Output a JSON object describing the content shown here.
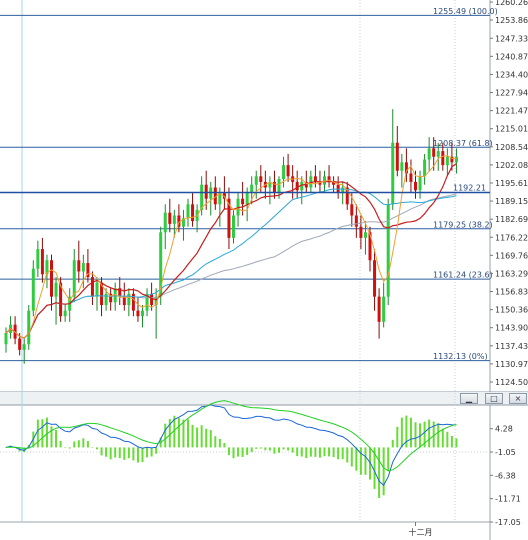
{
  "colors": {
    "up": "#2ecc40",
    "down": "#d01010",
    "fib_line": "#2f5f9f",
    "ma_fast": "#f0a030",
    "ma_mid": "#c81e1e",
    "ma_slow": "#2aa8d8",
    "ma_long": "#a0a8b8",
    "macd_line": "#1b66d6",
    "signal_line": "#22d022",
    "histogram": "#66dd33"
  },
  "subwindow_buttons": [
    {
      "label": "▁",
      "icon": "minimize-icon"
    },
    {
      "label": "□",
      "icon": "maximize-icon"
    },
    {
      "label": "×",
      "icon": "close-icon"
    }
  ],
  "chart_data": [
    {
      "type": "candlestick",
      "ylim": [
        1124.5,
        1261.0
      ],
      "ytick_labels": [
        "1260.26",
        "1253.86",
        "1247.33",
        "1240.87",
        "1234.40",
        "1227.94",
        "1221.47",
        "1215.01",
        "1208.54",
        "1202.08",
        "1195.61",
        "1189.15",
        "1182.69",
        "1176.22",
        "1169.76",
        "1163.29",
        "1156.83",
        "1150.36",
        "1143.90",
        "1137.43",
        "1130.97",
        "1124.50"
      ],
      "ytick_values": [
        1260.26,
        1253.86,
        1247.33,
        1240.87,
        1234.4,
        1227.94,
        1221.47,
        1215.01,
        1208.54,
        1202.08,
        1195.61,
        1189.15,
        1182.69,
        1176.22,
        1169.76,
        1163.29,
        1156.83,
        1150.36,
        1143.9,
        1137.43,
        1130.97,
        1124.5
      ],
      "fibonacci": [
        {
          "price": 1255.49,
          "label": "1255.49 (100.0)"
        },
        {
          "price": 1208.37,
          "label": "1208.37 (61.8)"
        },
        {
          "price": 1179.25,
          "label": "1179.25 (38.2)"
        },
        {
          "price": 1161.24,
          "label": "1161.24 (23.6)"
        },
        {
          "price": 1132.13,
          "label": "1132.13 (0%)"
        }
      ],
      "horizontal_line": {
        "price": 1192.21,
        "label": "1192.21"
      },
      "x_label": "十二月",
      "x_label_index": 90,
      "ohlc": [
        [
          1138,
          1144,
          1135,
          1142
        ],
        [
          1142,
          1148,
          1140,
          1145
        ],
        [
          1145,
          1148,
          1138,
          1140
        ],
        [
          1140,
          1142,
          1134,
          1136
        ],
        [
          1136,
          1140,
          1131,
          1138
        ],
        [
          1138,
          1152,
          1136,
          1150
        ],
        [
          1150,
          1168,
          1148,
          1165
        ],
        [
          1165,
          1175,
          1162,
          1172
        ],
        [
          1172,
          1176,
          1160,
          1163
        ],
        [
          1163,
          1170,
          1158,
          1168
        ],
        [
          1168,
          1170,
          1150,
          1155
        ],
        [
          1155,
          1162,
          1145,
          1160
        ],
        [
          1160,
          1162,
          1146,
          1148
        ],
        [
          1148,
          1152,
          1146,
          1150
        ],
        [
          1150,
          1158,
          1146,
          1155
        ],
        [
          1155,
          1172,
          1153,
          1168
        ],
        [
          1168,
          1175,
          1160,
          1164
        ],
        [
          1164,
          1170,
          1158,
          1167
        ],
        [
          1167,
          1172,
          1160,
          1162
        ],
        [
          1162,
          1164,
          1152,
          1155
        ],
        [
          1155,
          1162,
          1150,
          1160
        ],
        [
          1160,
          1162,
          1148,
          1152
        ],
        [
          1152,
          1158,
          1150,
          1156
        ],
        [
          1156,
          1158,
          1150,
          1153
        ],
        [
          1153,
          1160,
          1150,
          1158
        ],
        [
          1158,
          1162,
          1152,
          1155
        ],
        [
          1155,
          1160,
          1150,
          1152
        ],
        [
          1152,
          1158,
          1148,
          1156
        ],
        [
          1156,
          1158,
          1148,
          1150
        ],
        [
          1150,
          1155,
          1146,
          1148
        ],
        [
          1148,
          1152,
          1144,
          1150
        ],
        [
          1150,
          1158,
          1148,
          1156
        ],
        [
          1156,
          1160,
          1150,
          1152
        ],
        [
          1152,
          1158,
          1140,
          1155
        ],
        [
          1155,
          1180,
          1152,
          1178
        ],
        [
          1178,
          1188,
          1172,
          1185
        ],
        [
          1185,
          1190,
          1178,
          1181
        ],
        [
          1181,
          1186,
          1176,
          1184
        ],
        [
          1184,
          1188,
          1178,
          1180
        ],
        [
          1180,
          1186,
          1175,
          1183
        ],
        [
          1183,
          1190,
          1180,
          1188
        ],
        [
          1188,
          1192,
          1180,
          1182
        ],
        [
          1182,
          1188,
          1178,
          1186
        ],
        [
          1186,
          1198,
          1184,
          1195
        ],
        [
          1195,
          1200,
          1186,
          1190
        ],
        [
          1190,
          1196,
          1184,
          1194
        ],
        [
          1194,
          1198,
          1186,
          1188
        ],
        [
          1188,
          1194,
          1180,
          1192
        ],
        [
          1192,
          1198,
          1186,
          1190
        ],
        [
          1190,
          1194,
          1172,
          1176
        ],
        [
          1176,
          1186,
          1174,
          1184
        ],
        [
          1184,
          1192,
          1180,
          1190
        ],
        [
          1190,
          1196,
          1184,
          1188
        ],
        [
          1188,
          1194,
          1182,
          1192
        ],
        [
          1192,
          1198,
          1188,
          1195
        ],
        [
          1195,
          1200,
          1190,
          1198
        ],
        [
          1198,
          1202,
          1192,
          1196
        ],
        [
          1196,
          1200,
          1190,
          1194
        ],
        [
          1194,
          1198,
          1188,
          1196
        ],
        [
          1196,
          1200,
          1190,
          1192
        ],
        [
          1192,
          1198,
          1190,
          1197
        ],
        [
          1197,
          1205,
          1194,
          1202
        ],
        [
          1202,
          1206,
          1196,
          1198
        ],
        [
          1198,
          1202,
          1190,
          1196
        ],
        [
          1196,
          1200,
          1190,
          1193
        ],
        [
          1193,
          1198,
          1188,
          1196
        ],
        [
          1196,
          1200,
          1192,
          1194
        ],
        [
          1194,
          1200,
          1192,
          1198
        ],
        [
          1198,
          1202,
          1194,
          1196
        ],
        [
          1196,
          1200,
          1192,
          1195
        ],
        [
          1195,
          1200,
          1192,
          1198
        ],
        [
          1198,
          1202,
          1194,
          1196
        ],
        [
          1196,
          1198,
          1192,
          1195
        ],
        [
          1195,
          1198,
          1190,
          1192
        ],
        [
          1192,
          1196,
          1188,
          1194
        ],
        [
          1194,
          1196,
          1186,
          1188
        ],
        [
          1188,
          1192,
          1180,
          1184
        ],
        [
          1184,
          1188,
          1176,
          1180
        ],
        [
          1180,
          1184,
          1172,
          1176
        ],
        [
          1176,
          1182,
          1170,
          1178
        ],
        [
          1178,
          1180,
          1164,
          1168
        ],
        [
          1168,
          1172,
          1150,
          1155
        ],
        [
          1155,
          1158,
          1140,
          1146
        ],
        [
          1146,
          1160,
          1144,
          1155
        ],
        [
          1155,
          1190,
          1152,
          1188
        ],
        [
          1188,
          1222,
          1186,
          1210
        ],
        [
          1210,
          1216,
          1198,
          1200
        ],
        [
          1200,
          1206,
          1194,
          1203
        ],
        [
          1203,
          1208,
          1196,
          1199
        ],
        [
          1199,
          1204,
          1192,
          1196
        ],
        [
          1196,
          1200,
          1190,
          1193
        ],
        [
          1193,
          1200,
          1190,
          1198
        ],
        [
          1198,
          1206,
          1195,
          1204
        ],
        [
          1204,
          1212,
          1200,
          1208
        ],
        [
          1208,
          1212,
          1200,
          1205
        ],
        [
          1205,
          1210,
          1200,
          1207
        ],
        [
          1207,
          1210,
          1200,
          1202
        ],
        [
          1202,
          1208,
          1198,
          1205
        ],
        [
          1205,
          1210,
          1200,
          1203
        ],
        [
          1203,
          1208,
          1199,
          1205
        ]
      ],
      "ma_overlays": [
        "ma_fast",
        "ma_mid",
        "ma_slow",
        "ma_long"
      ]
    },
    {
      "type": "macd",
      "ylim": [
        -17.05,
        9.7
      ],
      "ytick_labels": [
        "4.28",
        "-1.05",
        "-6.38",
        "-11.71",
        "-17.05"
      ],
      "ytick_values": [
        4.28,
        -1.05,
        -6.38,
        -11.71,
        -17.05
      ]
    }
  ]
}
